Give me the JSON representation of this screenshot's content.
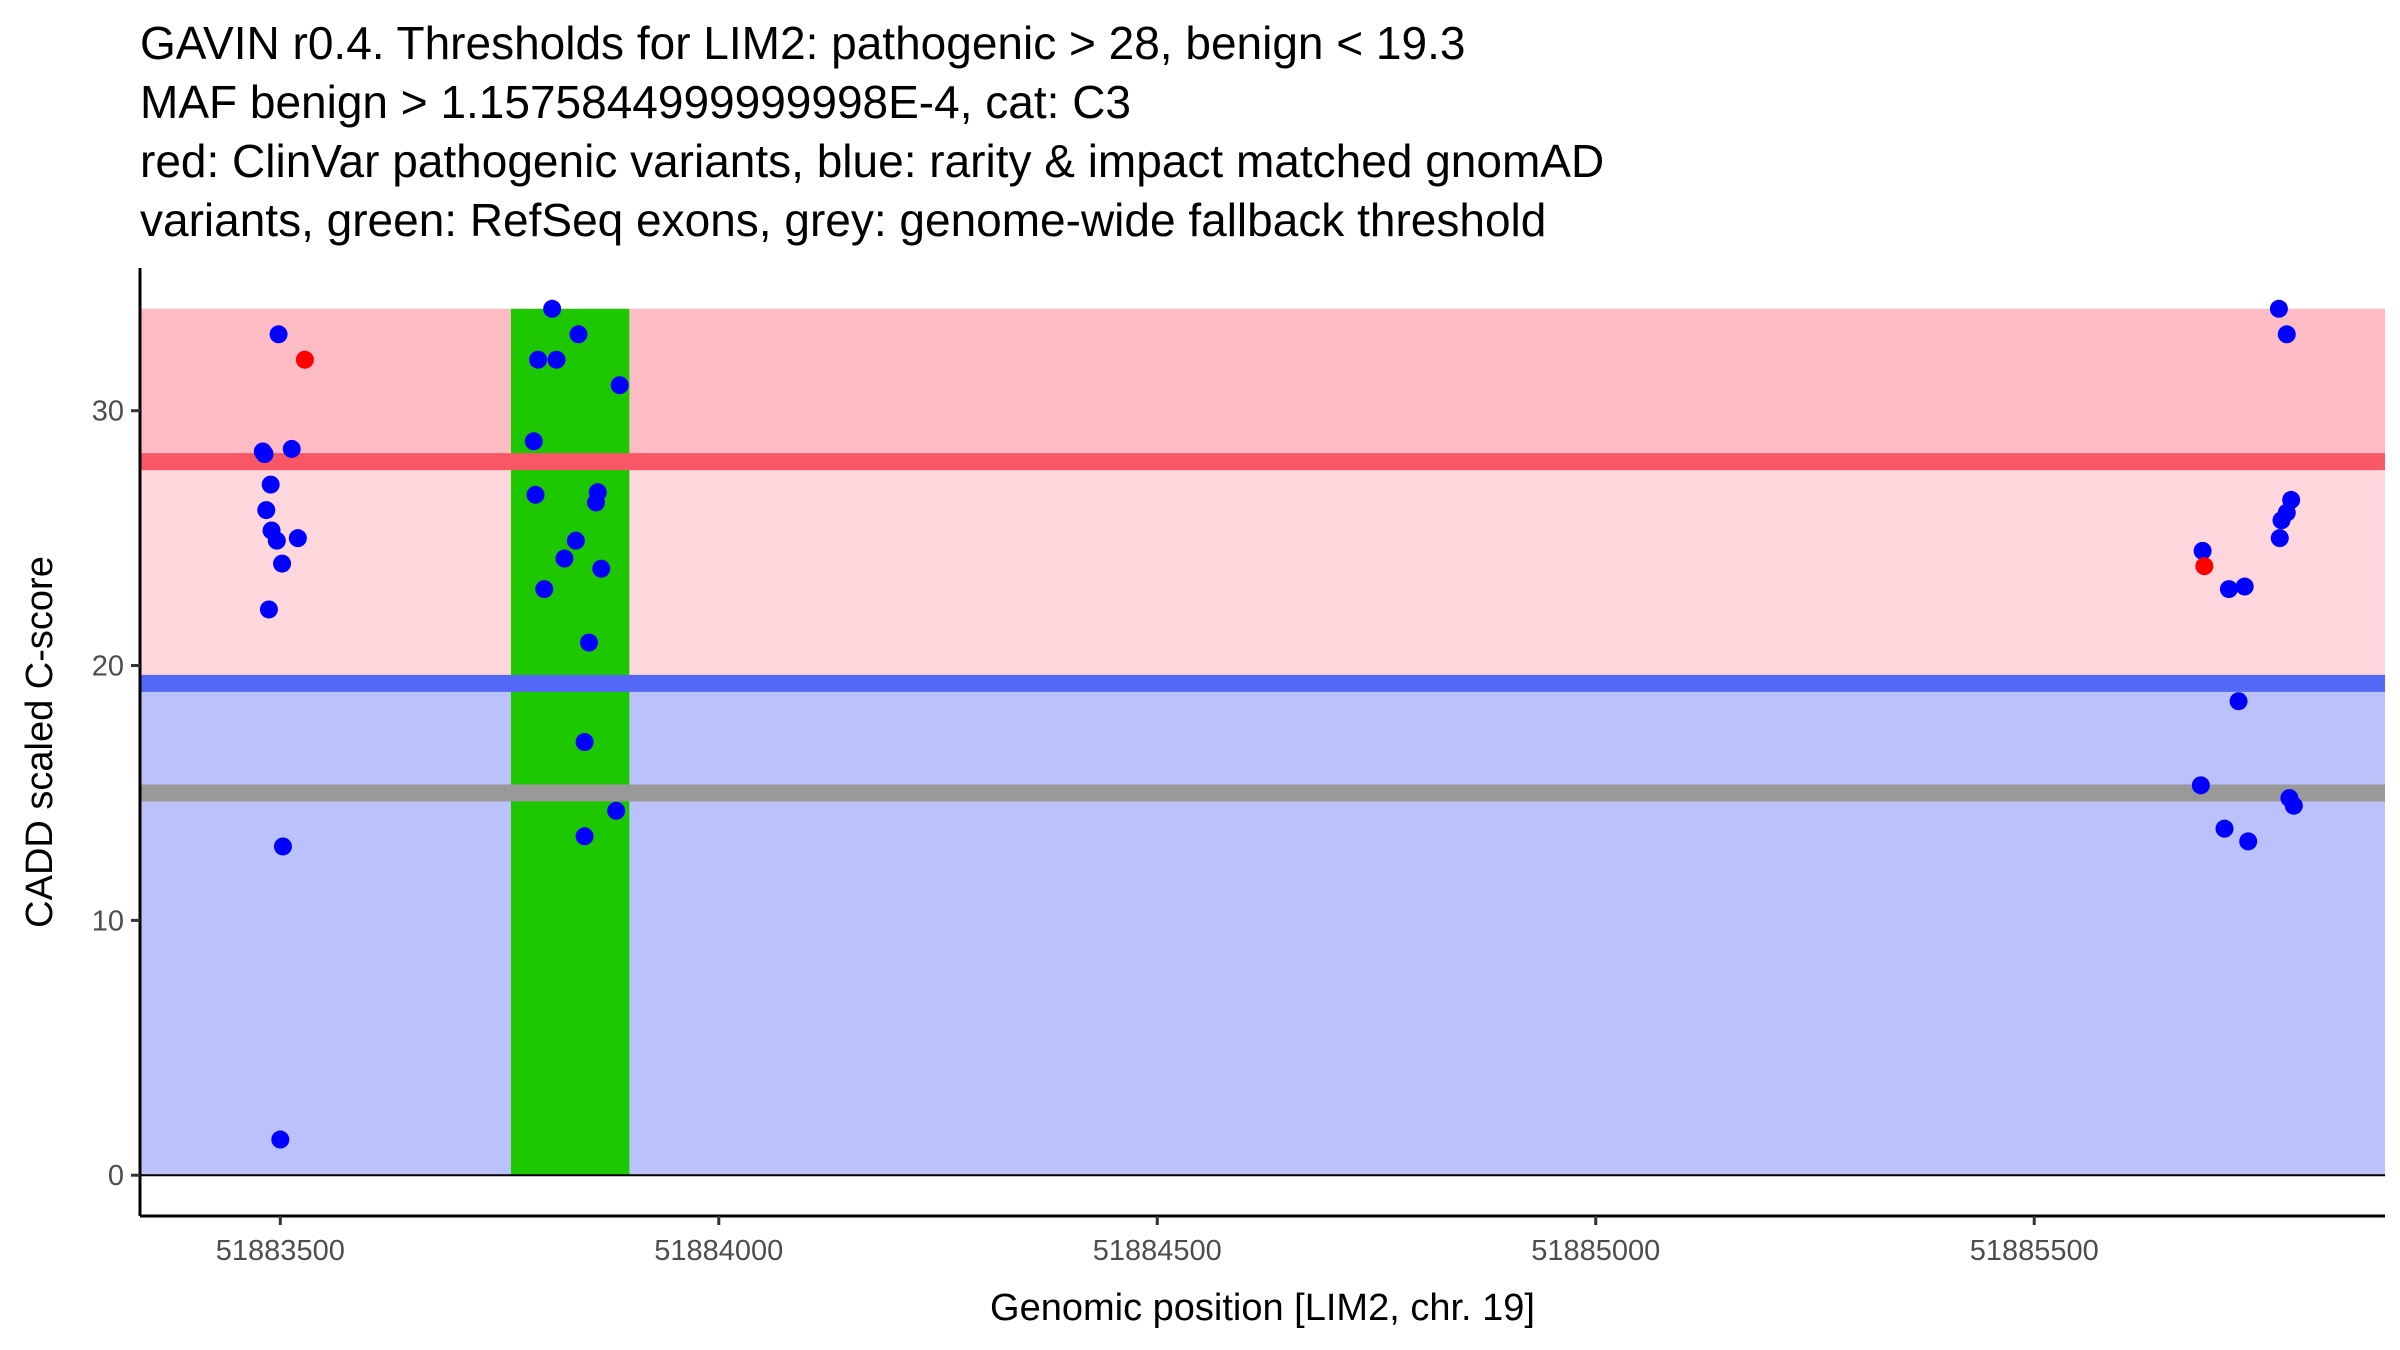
{
  "chart_data": {
    "type": "scatter",
    "title_lines": [
      "GAVIN r0.4. Thresholds for LIM2: pathogenic > 28, benign < 19.3",
      "MAF benign > 1.1575844999999998E-4, cat: C3",
      "red: ClinVar pathogenic variants, blue: rarity & impact matched gnomAD",
      "variants, green: RefSeq exons, grey: genome-wide fallback threshold"
    ],
    "xlabel": "Genomic position [LIM2, chr. 19]",
    "ylabel": "CADD scaled C-score",
    "xlim": [
      51883340,
      51885900
    ],
    "ylim": [
      -1.6,
      35.6
    ],
    "x_ticks": [
      51883500,
      51884000,
      51884500,
      51885000,
      51885500
    ],
    "x_tick_labels": [
      "51883500",
      "51884000",
      "51884500",
      "51885000",
      "51885500"
    ],
    "y_ticks": [
      0,
      10,
      20,
      30
    ],
    "y_tick_labels": [
      "0",
      "10",
      "20",
      "30"
    ],
    "bands": [
      {
        "from": 28,
        "to": 34,
        "color": "#fdbcc3"
      },
      {
        "from": 19.3,
        "to": 28,
        "color": "#fed7dc"
      },
      {
        "from": 0,
        "to": 19.3,
        "color": "#bbc1fa"
      }
    ],
    "threshold_lines": [
      {
        "y": 28,
        "color": "#f95766"
      },
      {
        "y": 19.3,
        "color": "#5368f4"
      },
      {
        "y": 15,
        "color": "#999999"
      }
    ],
    "exons": [
      {
        "start": 51883763,
        "end": 51883898,
        "color": "#1dc800"
      }
    ],
    "series": [
      {
        "color": "#0000ff",
        "points": [
          [
            51883480,
            28.4
          ],
          [
            51883482,
            28.3
          ],
          [
            51883484,
            26.1
          ],
          [
            51883487,
            22.2
          ],
          [
            51883489,
            27.1
          ],
          [
            51883490,
            25.3
          ],
          [
            51883496,
            24.9
          ],
          [
            51883498,
            33.0
          ],
          [
            51883500,
            1.4
          ],
          [
            51883502,
            24.0
          ],
          [
            51883503,
            12.9
          ],
          [
            51883513,
            28.5
          ],
          [
            51883520,
            25.0
          ],
          [
            51883789,
            28.8
          ],
          [
            51883791,
            26.7
          ],
          [
            51883794,
            32.0
          ],
          [
            51883801,
            23.0
          ],
          [
            51883810,
            34.0
          ],
          [
            51883815,
            32.0
          ],
          [
            51883824,
            24.2
          ],
          [
            51883837,
            24.9
          ],
          [
            51883840,
            33.0
          ],
          [
            51883847,
            17.0
          ],
          [
            51883847,
            13.3
          ],
          [
            51883852,
            20.9
          ],
          [
            51883860,
            26.4
          ],
          [
            51883862,
            26.8
          ],
          [
            51883866,
            23.8
          ],
          [
            51883883,
            14.3
          ],
          [
            51883887,
            31.0
          ],
          [
            51885690,
            15.3
          ],
          [
            51885692,
            24.5
          ],
          [
            51885717,
            13.6
          ],
          [
            51885722,
            23.0
          ],
          [
            51885733,
            18.6
          ],
          [
            51885740,
            23.1
          ],
          [
            51885744,
            13.1
          ],
          [
            51885779,
            34.0
          ],
          [
            51885780,
            25.0
          ],
          [
            51885782,
            25.7
          ],
          [
            51885788,
            26.0
          ],
          [
            51885788,
            33.0
          ],
          [
            51885791,
            14.8
          ],
          [
            51885793,
            26.5
          ],
          [
            51885796,
            14.5
          ]
        ]
      },
      {
        "color": "#ff0000",
        "points": [
          [
            51883528,
            32.0
          ],
          [
            51885694,
            23.9
          ]
        ]
      }
    ]
  }
}
